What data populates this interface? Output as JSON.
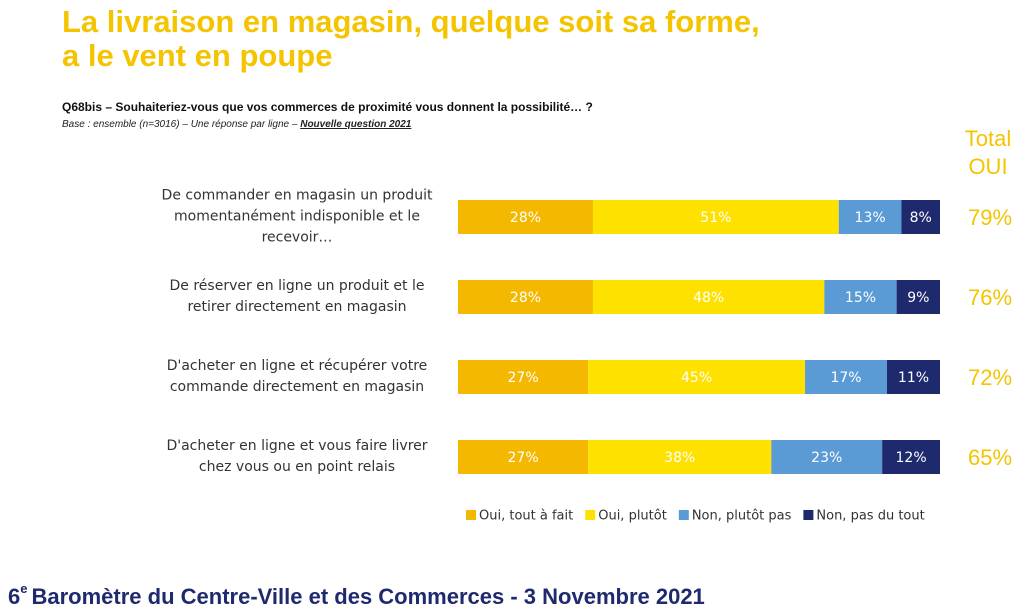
{
  "header": {
    "title_line1": "La livraison en magasin, quelque soit sa forme,",
    "title_line2": "a le vent en poupe",
    "question": "Q68bis – Souhaiteriez-vous que vos commerces de proximité vous donnent la possibilité… ?",
    "base": "Base : ensemble (n=3016) – Une réponse par ligne –",
    "base_note": "Nouvelle question 2021"
  },
  "chart_data": {
    "type": "stacked-bar-horizontal",
    "categories": [
      "De commander en magasin un produit momentanément indisponible et le recevoir…",
      "De réserver en ligne un produit et le retirer directement en magasin",
      "D'acheter en ligne et récupérer votre commande directement en magasin",
      "D'acheter en ligne et vous faire livrer chez vous ou en point relais"
    ],
    "series": [
      {
        "name": "Oui, tout à fait",
        "color": "#f5b800",
        "values": [
          28,
          28,
          27,
          27
        ],
        "value_labels": [
          "28%",
          "28%",
          "27%",
          "27%"
        ]
      },
      {
        "name": "Oui, plutôt",
        "color": "#ffe100",
        "values": [
          51,
          48,
          45,
          38
        ],
        "value_labels": [
          "51%",
          "48%",
          "45%",
          "38%"
        ]
      },
      {
        "name": "Non, plutôt pas",
        "color": "#5b9bd5",
        "values": [
          13,
          15,
          17,
          23
        ],
        "value_labels": [
          "13%",
          "15%",
          "17%",
          "23%"
        ]
      },
      {
        "name": "Non, pas du tout",
        "color": "#1f2a6e",
        "values": [
          8,
          9,
          11,
          12
        ],
        "value_labels": [
          "8%",
          "9%",
          "11%",
          "12%"
        ]
      }
    ],
    "total": {
      "title": "Total OUI",
      "color": "#f5c400",
      "values": [
        79,
        76,
        72,
        65
      ],
      "value_labels": [
        "79%",
        "76%",
        "72%",
        "65%"
      ]
    },
    "legend": "bottom"
  },
  "footer": {
    "ordinal": "6",
    "ordinal_suffix": "e",
    "text": "Baromètre du Centre-Ville et des Commerces - 3 Novembre 2021"
  }
}
